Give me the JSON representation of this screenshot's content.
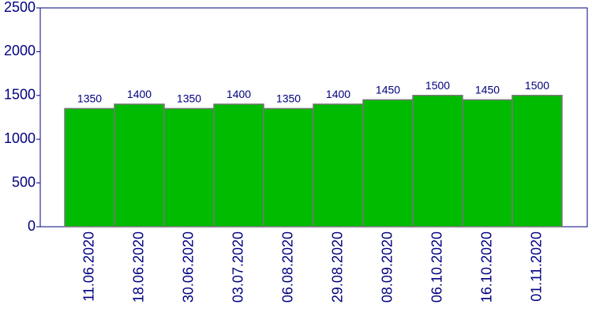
{
  "chart_data": {
    "type": "bar",
    "categories": [
      "11.06.2020",
      "18.06.2020",
      "30.06.2020",
      "03.07.2020",
      "06.08.2020",
      "29.08.2020",
      "08.09.2020",
      "06.10.2020",
      "16.10.2020",
      "01.11.2020"
    ],
    "values": [
      1350,
      1400,
      1350,
      1400,
      1350,
      1400,
      1450,
      1500,
      1450,
      1500
    ],
    "color": "#00bb00",
    "ylim": [
      0,
      2500
    ],
    "yticks": [
      0,
      500,
      1000,
      1500,
      2000,
      2500
    ]
  }
}
